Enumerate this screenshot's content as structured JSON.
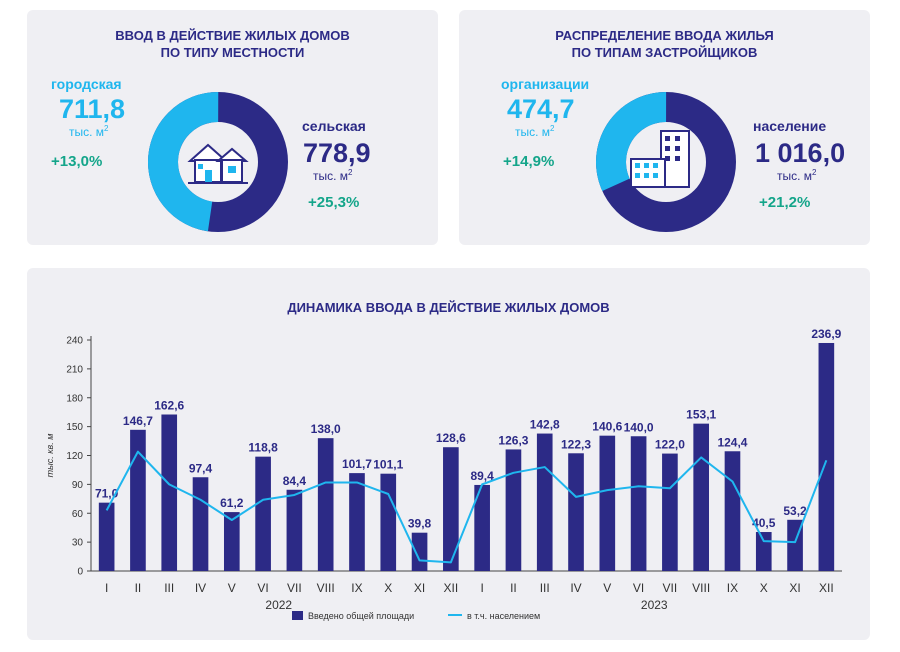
{
  "left_panel": {
    "title_line1": "ВВОД В ДЕЙСТВИЕ ЖИЛЫХ ДОМОВ",
    "title_line2": "ПО ТИПУ МЕСТНОСТИ",
    "urban": {
      "label": "городская",
      "value": "711,8",
      "unit": "тыс. м",
      "change": "+13,0%"
    },
    "rural": {
      "label": "сельская",
      "value": "778,9",
      "unit": "тыс. м",
      "change": "+25,3%"
    },
    "unit_sup": "2",
    "donut": {
      "light_share": 0.477,
      "light_color": "#1fb6ee",
      "dark_color": "#2c2a86"
    },
    "icon": "houses-icon"
  },
  "right_panel": {
    "title_line1": "РАСПРЕДЕЛЕНИЕ ВВОДА ЖИЛЬЯ",
    "title_line2": "ПО ТИПАМ ЗАСТРОЙЩИКОВ",
    "organizations": {
      "label": "организации",
      "value": "474,7",
      "unit": "тыс. м",
      "change": "+14,9%"
    },
    "population": {
      "label": "население",
      "value": "1 016,0",
      "unit": "тыс. м",
      "change": "+21,2%"
    },
    "unit_sup": "2",
    "donut": {
      "light_share": 0.318,
      "light_color": "#1fb6ee",
      "dark_color": "#2c2a86"
    },
    "icon": "apartment-building-icon"
  },
  "chart_data": {
    "type": "bar",
    "title": "ДИНАМИКА ВВОДА В ДЕЙСТВИЕ ЖИЛЫХ ДОМОВ",
    "ylabel": "тыс. кв. м",
    "ylim": [
      0,
      240
    ],
    "yticks": [
      0,
      30,
      60,
      90,
      120,
      150,
      180,
      210,
      240
    ],
    "categories": [
      "I",
      "II",
      "III",
      "IV",
      "V",
      "VI",
      "VII",
      "VIII",
      "IX",
      "X",
      "XI",
      "XII",
      "I",
      "II",
      "III",
      "IV",
      "V",
      "VI",
      "VII",
      "VIII",
      "IX",
      "X",
      "XI",
      "XII"
    ],
    "year_groups": [
      {
        "label": "2022",
        "start": 0,
        "end": 11
      },
      {
        "label": "2023",
        "start": 12,
        "end": 23
      }
    ],
    "series": [
      {
        "name": "Введено общей площади",
        "type": "bar",
        "color": "#2c2a86",
        "values": [
          71.0,
          146.7,
          162.6,
          97.4,
          61.2,
          118.8,
          84.4,
          138.0,
          101.7,
          101.1,
          39.8,
          128.6,
          89.4,
          126.3,
          142.8,
          122.3,
          140.6,
          140.0,
          122.0,
          153.1,
          124.4,
          40.5,
          53.2,
          236.9
        ],
        "labels": [
          "71,0",
          "146,7",
          "162,6",
          "97,4",
          "61,2",
          "118,8",
          "84,4",
          "138,0",
          "101,7",
          "101,1",
          "39,8",
          "128,6",
          "89,4",
          "126,3",
          "142,8",
          "122,3",
          "140,6",
          "140,0",
          "122,0",
          "153,1",
          "124,4",
          "40,5",
          "53,2",
          "236,9"
        ]
      },
      {
        "name": "в т.ч. населением",
        "type": "line",
        "color": "#1fb6ee",
        "values": [
          63,
          124,
          90,
          74,
          53,
          74,
          79,
          92,
          92,
          80,
          11,
          9,
          90,
          102,
          108,
          77,
          84,
          88,
          86,
          118,
          93,
          31,
          30,
          115
        ]
      }
    ]
  }
}
